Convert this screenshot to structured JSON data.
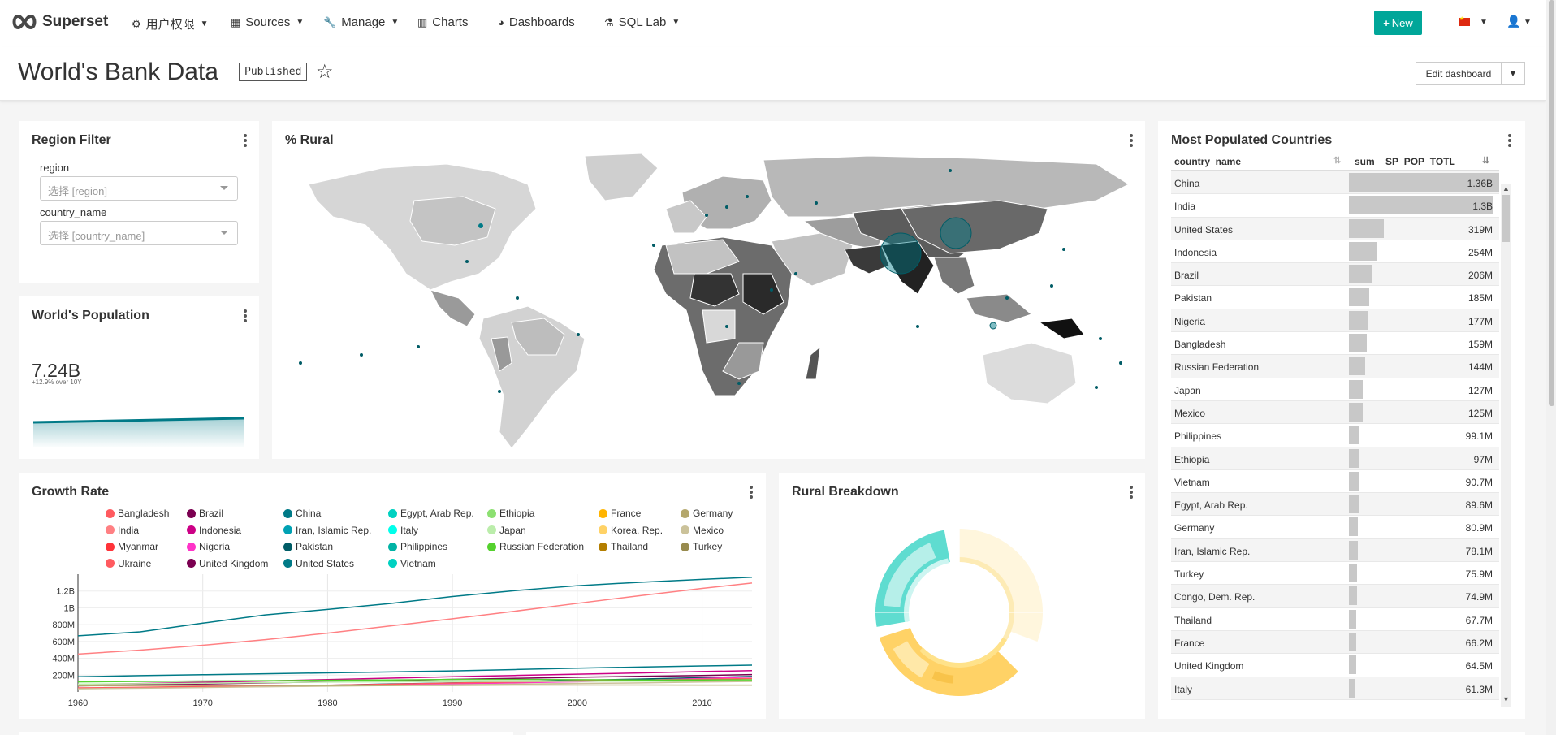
{
  "navbar": {
    "brand": "Superset",
    "items": [
      {
        "label": "用户权限",
        "icon": "gears-icon"
      },
      {
        "label": "Sources",
        "icon": "table-icon"
      },
      {
        "label": "Manage",
        "icon": "wrench-icon"
      },
      {
        "label": "Charts",
        "icon": "bar-chart-icon"
      },
      {
        "label": "Dashboards",
        "icon": "dashboard-icon"
      },
      {
        "label": "SQL Lab",
        "icon": "flask-icon"
      }
    ],
    "new_button": "New",
    "language_flag": "china-flag-icon"
  },
  "header": {
    "title": "World's Bank Data",
    "status": "Published",
    "edit_button": "Edit dashboard"
  },
  "region_filter": {
    "title": "Region Filter",
    "fields": [
      {
        "label": "region",
        "placeholder": "选择 [region]"
      },
      {
        "label": "country_name",
        "placeholder": "选择 [country_name]"
      }
    ]
  },
  "world_population": {
    "title": "World's Population",
    "value": "7.24B",
    "delta": "+12.9% over 10Y"
  },
  "rural_map": {
    "title": "% Rural"
  },
  "most_populated": {
    "title": "Most Populated Countries",
    "columns": [
      "country_name",
      "sum__SP_POP_TOTL"
    ],
    "rows": [
      {
        "name": "China",
        "value": "1.36B",
        "num": 1.36
      },
      {
        "name": "India",
        "value": "1.3B",
        "num": 1.3
      },
      {
        "name": "United States",
        "value": "319M",
        "num": 0.319
      },
      {
        "name": "Indonesia",
        "value": "254M",
        "num": 0.254
      },
      {
        "name": "Brazil",
        "value": "206M",
        "num": 0.206
      },
      {
        "name": "Pakistan",
        "value": "185M",
        "num": 0.185
      },
      {
        "name": "Nigeria",
        "value": "177M",
        "num": 0.177
      },
      {
        "name": "Bangladesh",
        "value": "159M",
        "num": 0.159
      },
      {
        "name": "Russian Federation",
        "value": "144M",
        "num": 0.144
      },
      {
        "name": "Japan",
        "value": "127M",
        "num": 0.127
      },
      {
        "name": "Mexico",
        "value": "125M",
        "num": 0.125
      },
      {
        "name": "Philippines",
        "value": "99.1M",
        "num": 0.0991
      },
      {
        "name": "Ethiopia",
        "value": "97M",
        "num": 0.097
      },
      {
        "name": "Vietnam",
        "value": "90.7M",
        "num": 0.0907
      },
      {
        "name": "Egypt, Arab Rep.",
        "value": "89.6M",
        "num": 0.0896
      },
      {
        "name": "Germany",
        "value": "80.9M",
        "num": 0.0809
      },
      {
        "name": "Iran, Islamic Rep.",
        "value": "78.1M",
        "num": 0.0781
      },
      {
        "name": "Turkey",
        "value": "75.9M",
        "num": 0.0759
      },
      {
        "name": "Congo, Dem. Rep.",
        "value": "74.9M",
        "num": 0.0749
      },
      {
        "name": "Thailand",
        "value": "67.7M",
        "num": 0.0677
      },
      {
        "name": "France",
        "value": "66.2M",
        "num": 0.0662
      },
      {
        "name": "United Kingdom",
        "value": "64.5M",
        "num": 0.0645
      },
      {
        "name": "Italy",
        "value": "61.3M",
        "num": 0.0613
      }
    ]
  },
  "growth_rate": {
    "title": "Growth Rate",
    "legend": [
      {
        "name": "Bangladesh",
        "color": "#ff5a5f"
      },
      {
        "name": "Brazil",
        "color": "#7b0051"
      },
      {
        "name": "China",
        "color": "#007a87"
      },
      {
        "name": "Egypt, Arab Rep.",
        "color": "#00d1c1"
      },
      {
        "name": "Ethiopia",
        "color": "#8ce071"
      },
      {
        "name": "France",
        "color": "#ffb400"
      },
      {
        "name": "Germany",
        "color": "#b4a76c"
      },
      {
        "name": "India",
        "color": "#ff8083"
      },
      {
        "name": "Indonesia",
        "color": "#cc0086"
      },
      {
        "name": "Iran, Islamic Rep.",
        "color": "#00a1b3"
      },
      {
        "name": "Italy",
        "color": "#00ffeb"
      },
      {
        "name": "Japan",
        "color": "#bbedab"
      },
      {
        "name": "Korea, Rep.",
        "color": "#ffd266"
      },
      {
        "name": "Mexico",
        "color": "#cbc29a"
      },
      {
        "name": "Myanmar",
        "color": "#ff3339"
      },
      {
        "name": "Nigeria",
        "color": "#ff33c8"
      },
      {
        "name": "Pakistan",
        "color": "#005c66"
      },
      {
        "name": "Philippines",
        "color": "#00b3a5"
      },
      {
        "name": "Russian Federation",
        "color": "#55d12e"
      },
      {
        "name": "Thailand",
        "color": "#b37e00"
      },
      {
        "name": "Turkey",
        "color": "#988b4e"
      },
      {
        "name": "Ukraine",
        "color": "#ff5a5f"
      },
      {
        "name": "United Kingdom",
        "color": "#7b0051"
      },
      {
        "name": "United States",
        "color": "#007a87"
      },
      {
        "name": "Vietnam",
        "color": "#00d1c1"
      }
    ]
  },
  "rural_breakdown": {
    "title": "Rural Breakdown"
  },
  "chart_data": {
    "type": "line",
    "x": [
      1960,
      1965,
      1970,
      1975,
      1980,
      1985,
      1990,
      1995,
      2000,
      2005,
      2010,
      2014
    ],
    "xticks": [
      "1960",
      "1970",
      "1980",
      "1990",
      "2000",
      "2010"
    ],
    "yticks": [
      "200M",
      "400M",
      "600M",
      "800M",
      "1B",
      "1.2B"
    ],
    "ylim": [
      0,
      1400000000
    ],
    "series": [
      {
        "name": "China",
        "color": "#007a87",
        "values": [
          667000000,
          715000000,
          818000000,
          916000000,
          981000000,
          1051000000,
          1135000000,
          1205000000,
          1263000000,
          1304000000,
          1338000000,
          1364000000
        ]
      },
      {
        "name": "India",
        "color": "#ff8083",
        "values": [
          450000000,
          497000000,
          555000000,
          622000000,
          699000000,
          784000000,
          870000000,
          960000000,
          1053000000,
          1144000000,
          1231000000,
          1295000000
        ]
      },
      {
        "name": "United States",
        "color": "#007a87",
        "values": [
          181000000,
          194000000,
          205000000,
          216000000,
          227000000,
          238000000,
          250000000,
          266000000,
          282000000,
          296000000,
          309000000,
          319000000
        ]
      },
      {
        "name": "Indonesia",
        "color": "#cc0086",
        "values": [
          88000000,
          100000000,
          115000000,
          130000000,
          147000000,
          164000000,
          181000000,
          196000000,
          211000000,
          226000000,
          242000000,
          254000000
        ]
      },
      {
        "name": "Brazil",
        "color": "#7b0051",
        "values": [
          72000000,
          84000000,
          95000000,
          108000000,
          121000000,
          136000000,
          150000000,
          162000000,
          175000000,
          186000000,
          196000000,
          206000000
        ]
      },
      {
        "name": "Pakistan",
        "color": "#005c66",
        "values": [
          44000000,
          50000000,
          58000000,
          68000000,
          79000000,
          95000000,
          107000000,
          122000000,
          138000000,
          153000000,
          170000000,
          185000000
        ]
      },
      {
        "name": "Nigeria",
        "color": "#ff33c8",
        "values": [
          45000000,
          51000000,
          56000000,
          64000000,
          73000000,
          83000000,
          95000000,
          108000000,
          122000000,
          139000000,
          159000000,
          177000000
        ]
      },
      {
        "name": "Bangladesh",
        "color": "#ff5a5f",
        "values": [
          48000000,
          55000000,
          65000000,
          71000000,
          80000000,
          92000000,
          106000000,
          118000000,
          131000000,
          140000000,
          151000000,
          159000000
        ]
      },
      {
        "name": "Russian Federation",
        "color": "#55d12e",
        "values": [
          119000000,
          126000000,
          130000000,
          134000000,
          139000000,
          143000000,
          148000000,
          148000000,
          146000000,
          143000000,
          143000000,
          144000000
        ]
      },
      {
        "name": "Japan",
        "color": "#bbedab",
        "values": [
          93000000,
          98000000,
          104000000,
          111000000,
          117000000,
          121000000,
          124000000,
          125000000,
          127000000,
          128000000,
          128000000,
          127000000
        ]
      },
      {
        "name": "Mexico",
        "color": "#cbc29a",
        "values": [
          38000000,
          45000000,
          52000000,
          61000000,
          69000000,
          76000000,
          85000000,
          93000000,
          101000000,
          107000000,
          118000000,
          125000000
        ]
      },
      {
        "name": "Germany",
        "color": "#b4a76c",
        "values": [
          73000000,
          76000000,
          78000000,
          79000000,
          78000000,
          78000000,
          79000000,
          82000000,
          82000000,
          82000000,
          81000000,
          81000000
        ]
      }
    ]
  }
}
